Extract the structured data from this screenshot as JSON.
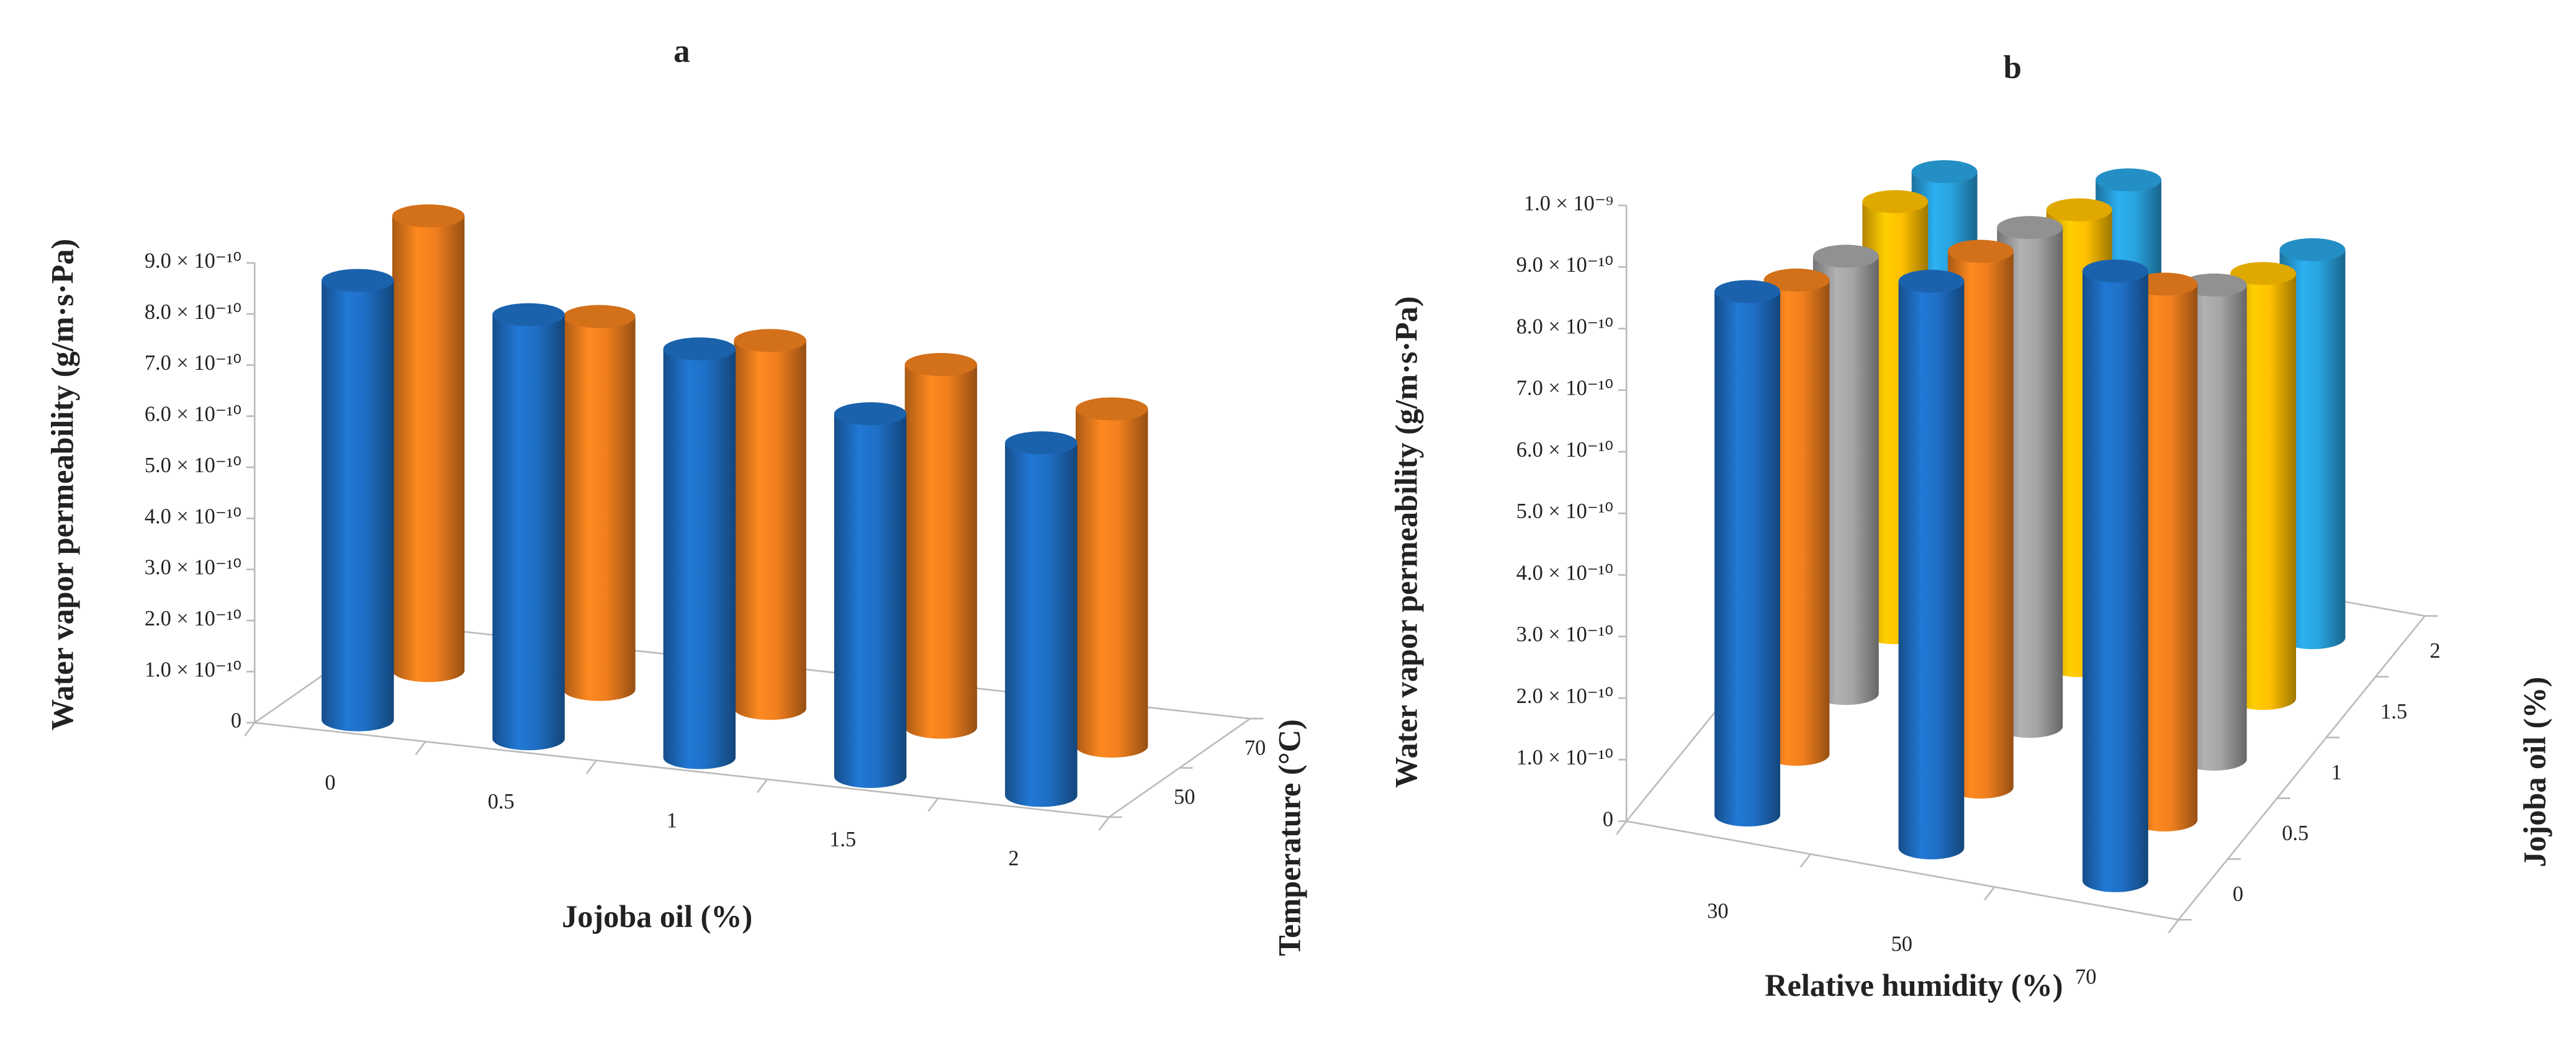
{
  "chart_data": [
    {
      "type": "bar",
      "title": "a",
      "x_label": "Jojoba oil (%)",
      "y_label": "Water vapor permeability (g/m·s·Pa)",
      "z_label": "Temperature (°C)",
      "categories": [
        "0",
        "0.5",
        "1",
        "1.5",
        "2"
      ],
      "series": [
        {
          "name": "50",
          "color": "#1f6fc5",
          "values": [
            8.6e-10,
            8.3e-10,
            8e-10,
            7.1e-10,
            6.9e-10
          ]
        },
        {
          "name": "70",
          "color": "#f07f1e",
          "values": [
            8.9e-10,
            7.3e-10,
            7.2e-10,
            7.1e-10,
            6.6e-10
          ]
        }
      ],
      "ylim": [
        0,
        9e-10
      ],
      "yticks": [
        0,
        {
          "value": 1e-10,
          "label": "1.0 × 10⁻¹⁰"
        },
        {
          "value": 2e-10,
          "label": "2.0 × 10⁻¹⁰"
        },
        {
          "value": 3e-10,
          "label": "3.0 × 10⁻¹⁰"
        },
        {
          "value": 4e-10,
          "label": "4.0 × 10⁻¹⁰"
        },
        {
          "value": 5e-10,
          "label": "5.0 × 10⁻¹⁰"
        },
        {
          "value": 6e-10,
          "label": "6.0 × 10⁻¹⁰"
        },
        {
          "value": 7e-10,
          "label": "7.0 × 10⁻¹⁰"
        },
        {
          "value": 8e-10,
          "label": "8.0 × 10⁻¹⁰"
        },
        {
          "value": 9e-10,
          "label": "9.0 × 10⁻¹⁰"
        }
      ]
    },
    {
      "type": "bar",
      "title": "b",
      "x_label": "Relative humidity (%)",
      "y_label": "Water vapor permeability (g/m·s·Pa)",
      "z_label": "Jojoba oil (%)",
      "categories": [
        "30",
        "50",
        "70"
      ],
      "series": [
        {
          "name": "0",
          "color": "#1f6fc5",
          "values": [
            8.5e-10,
            9.2e-10,
            9.9e-10
          ]
        },
        {
          "name": "0.5",
          "color": "#f07f1e",
          "values": [
            7.7e-10,
            8.7e-10,
            8.7e-10
          ]
        },
        {
          "name": "1",
          "color": "#a5a5a5",
          "values": [
            7.1e-10,
            8.1e-10,
            7.7e-10
          ]
        },
        {
          "name": "1.5",
          "color": "#ffc000",
          "values": [
            7e-10,
            7.4e-10,
            6.9e-10
          ]
        },
        {
          "name": "2",
          "color": "#29a3e0",
          "values": [
            6.5e-10,
            6.9e-10,
            6.3e-10
          ]
        }
      ],
      "ylim": [
        0,
        1e-09
      ],
      "yticks": [
        0,
        {
          "value": 1e-10,
          "label": "1.0 × 10⁻¹⁰"
        },
        {
          "value": 2e-10,
          "label": "2.0 × 10⁻¹⁰"
        },
        {
          "value": 3e-10,
          "label": "3.0 × 10⁻¹⁰"
        },
        {
          "value": 4e-10,
          "label": "4.0 × 10⁻¹⁰"
        },
        {
          "value": 5e-10,
          "label": "5.0 × 10⁻¹⁰"
        },
        {
          "value": 6e-10,
          "label": "6.0 × 10⁻¹⁰"
        },
        {
          "value": 7e-10,
          "label": "7.0 × 10⁻¹⁰"
        },
        {
          "value": 8e-10,
          "label": "8.0 × 10⁻¹⁰"
        },
        {
          "value": 9e-10,
          "label": "9.0 × 10⁻¹⁰"
        },
        {
          "value": 1e-09,
          "label": "1.0 × 10⁻⁹"
        }
      ]
    }
  ]
}
